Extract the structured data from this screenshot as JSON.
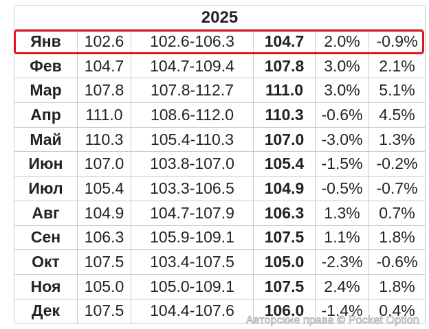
{
  "table": {
    "year": "2025",
    "rows": [
      {
        "month": "Янв",
        "open": "102.6",
        "range": "102.6-106.3",
        "close": "104.7",
        "change": "2.0%",
        "total": "-0.9%"
      },
      {
        "month": "Фев",
        "open": "104.7",
        "range": "104.7-109.4",
        "close": "107.8",
        "change": "3.0%",
        "total": "2.1%"
      },
      {
        "month": "Мар",
        "open": "107.8",
        "range": "107.8-112.7",
        "close": "111.0",
        "change": "3.0%",
        "total": "5.1%"
      },
      {
        "month": "Апр",
        "open": "111.0",
        "range": "108.6-112.0",
        "close": "110.3",
        "change": "-0.6%",
        "total": "4.5%"
      },
      {
        "month": "Май",
        "open": "110.3",
        "range": "105.4-110.3",
        "close": "107.0",
        "change": "-3.0%",
        "total": "1.3%"
      },
      {
        "month": "Июн",
        "open": "107.0",
        "range": "103.8-107.0",
        "close": "105.4",
        "change": "-1.5%",
        "total": "-0.2%"
      },
      {
        "month": "Июл",
        "open": "105.4",
        "range": "103.3-106.5",
        "close": "104.9",
        "change": "-0.5%",
        "total": "-0.7%"
      },
      {
        "month": "Авг",
        "open": "104.9",
        "range": "104.7-107.9",
        "close": "106.3",
        "change": "1.3%",
        "total": "0.7%"
      },
      {
        "month": "Сен",
        "open": "106.3",
        "range": "105.9-109.1",
        "close": "107.5",
        "change": "1.1%",
        "total": "1.8%"
      },
      {
        "month": "Окт",
        "open": "107.5",
        "range": "103.4-107.5",
        "close": "105.0",
        "change": "-2.3%",
        "total": "-0.6%"
      },
      {
        "month": "Ноя",
        "open": "105.0",
        "range": "105.0-109.1",
        "close": "107.5",
        "change": "2.4%",
        "total": "1.8%"
      },
      {
        "month": "Дек",
        "open": "107.5",
        "range": "104.4-107.6",
        "close": "106.0",
        "change": "-1.4%",
        "total": "0.4%"
      }
    ]
  },
  "watermark": "Авторские права © Pocket Option",
  "colors": {
    "highlight": "#e0161e",
    "grid": "#c8c8c8",
    "text": "#222222"
  }
}
